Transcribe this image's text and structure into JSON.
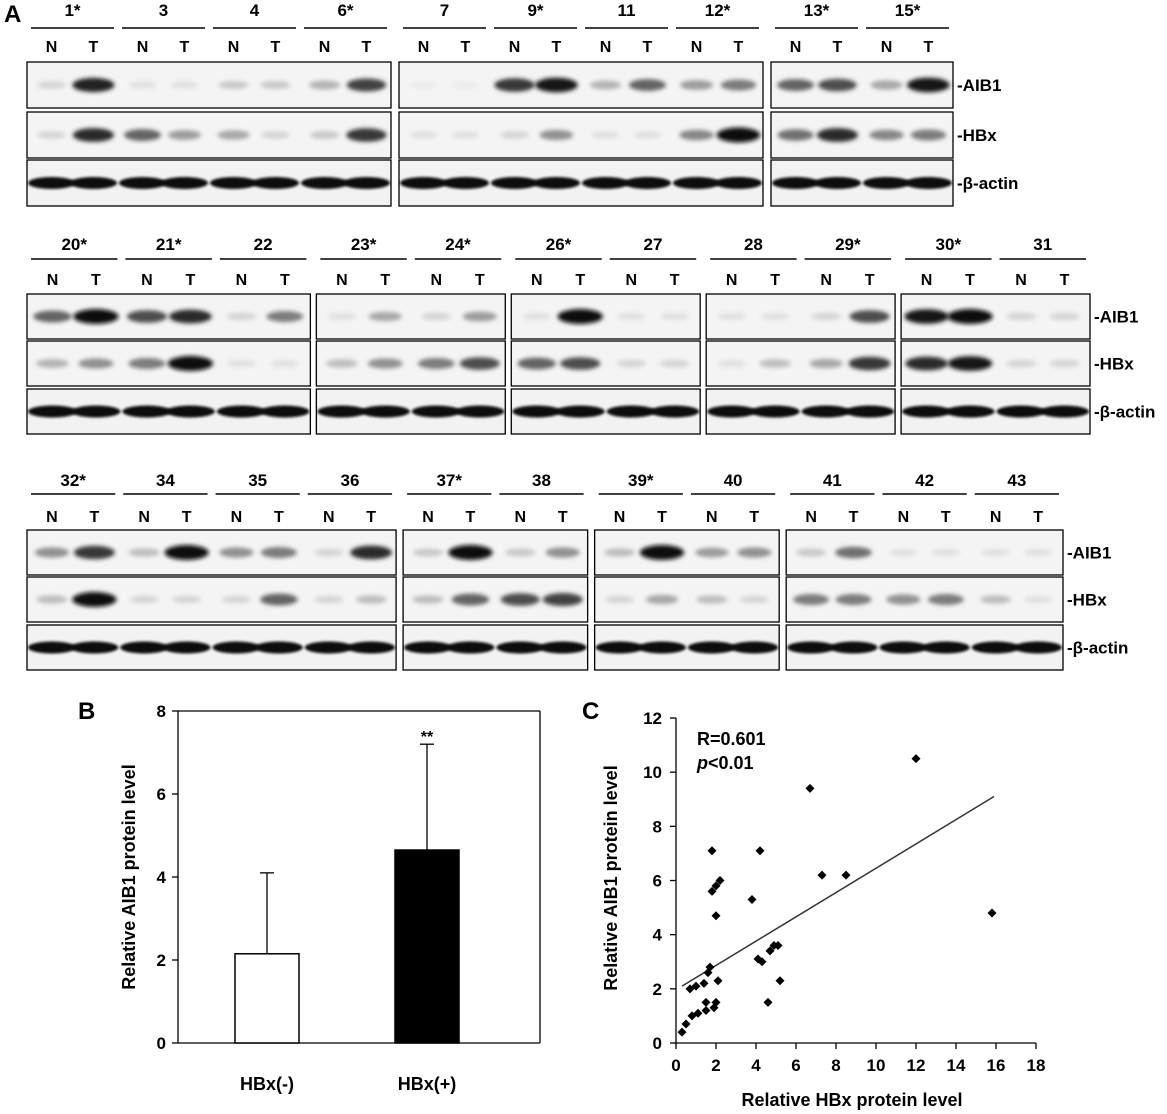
{
  "figure": {
    "panel_labels": {
      "a": "A",
      "b": "B",
      "c": "C"
    },
    "lane_labels": {
      "normal": "N",
      "tumor": "T"
    },
    "proteins": [
      "-AIB1",
      "-HBx",
      "-β-actin"
    ]
  },
  "blots": {
    "rows": [
      {
        "samples": [
          "1*",
          "3",
          "4",
          "6*",
          "7",
          "9*",
          "11",
          "12*",
          "13*",
          "15*"
        ],
        "group_sizes": [
          4,
          4,
          2
        ],
        "bands": {
          "AIB1": [
            0.1,
            0.9,
            0.05,
            0.05,
            0.15,
            0.15,
            0.25,
            0.75,
            0.0,
            0.0,
            0.8,
            0.95,
            0.25,
            0.6,
            0.35,
            0.5,
            0.6,
            0.7,
            0.3,
            0.95
          ],
          "HBx": [
            0.1,
            0.85,
            0.6,
            0.35,
            0.3,
            0.1,
            0.15,
            0.8,
            0.05,
            0.05,
            0.1,
            0.4,
            0.05,
            0.05,
            0.45,
            1.0,
            0.55,
            0.85,
            0.45,
            0.5
          ],
          "actin": [
            1,
            1,
            1,
            1,
            1,
            1,
            1,
            1,
            1,
            1,
            1,
            1,
            1,
            1,
            1,
            1,
            1,
            1,
            1,
            1
          ]
        }
      },
      {
        "samples": [
          "20*",
          "21*",
          "22",
          "23*",
          "24*",
          "26*",
          "27",
          "28",
          "29*",
          "30*",
          "31"
        ],
        "group_sizes": [
          3,
          2,
          2,
          2,
          2
        ],
        "bands": {
          "AIB1": [
            0.6,
            1.0,
            0.7,
            0.85,
            0.1,
            0.5,
            0.05,
            0.3,
            0.1,
            0.35,
            0.05,
            1.0,
            0.05,
            0.05,
            0.05,
            0.05,
            0.1,
            0.7,
            0.95,
            1.0,
            0.1,
            0.1
          ],
          "HBx": [
            0.25,
            0.4,
            0.5,
            1.0,
            0.05,
            0.05,
            0.2,
            0.4,
            0.5,
            0.7,
            0.6,
            0.7,
            0.1,
            0.1,
            0.05,
            0.2,
            0.3,
            0.8,
            0.85,
            0.95,
            0.1,
            0.1
          ],
          "actin": [
            1,
            1,
            1,
            1,
            1,
            1,
            1,
            1,
            1,
            1,
            1,
            1,
            1,
            1,
            1,
            1,
            1,
            1,
            1,
            1,
            1,
            1
          ]
        }
      },
      {
        "samples": [
          "32*",
          "34",
          "35",
          "36",
          "37*",
          "38",
          "39*",
          "40",
          "41",
          "42",
          "43"
        ],
        "group_sizes": [
          4,
          2,
          2,
          3
        ],
        "bands": {
          "AIB1": [
            0.4,
            0.8,
            0.2,
            1.0,
            0.4,
            0.5,
            0.1,
            0.85,
            0.15,
            1.0,
            0.15,
            0.4,
            0.2,
            1.0,
            0.35,
            0.4,
            0.15,
            0.55,
            0.05,
            0.05,
            0.05,
            0.05
          ],
          "HBx": [
            0.2,
            1.0,
            0.1,
            0.1,
            0.1,
            0.6,
            0.1,
            0.2,
            0.2,
            0.6,
            0.7,
            0.75,
            0.1,
            0.3,
            0.2,
            0.1,
            0.5,
            0.5,
            0.4,
            0.5,
            0.2,
            0.05
          ],
          "actin": [
            1,
            1,
            1,
            1,
            1,
            1,
            1,
            1,
            1,
            1,
            1,
            1,
            1,
            1,
            1,
            1,
            1,
            1,
            1,
            1,
            1,
            1
          ]
        }
      }
    ]
  },
  "chart_data": [
    {
      "type": "bar",
      "categories": [
        "HBx(-)",
        "HBx(+)"
      ],
      "values": [
        2.15,
        4.65
      ],
      "errors": [
        1.95,
        2.55
      ],
      "bar_colors": [
        "#ffffff",
        "#000000"
      ],
      "significance": [
        "",
        "**"
      ],
      "ylabel": "Relative AIB1 protein level",
      "ylim": [
        0,
        8
      ],
      "yticks": [
        0,
        2,
        4,
        6,
        8
      ],
      "grid": false
    },
    {
      "type": "scatter",
      "xlabel": "Relative HBx protein level",
      "ylabel": "Relative AIB1 protein level",
      "xlim": [
        0,
        18
      ],
      "ylim": [
        0,
        12
      ],
      "xticks": [
        0,
        2,
        4,
        6,
        8,
        10,
        12,
        14,
        16,
        18
      ],
      "yticks": [
        0,
        2,
        4,
        6,
        8,
        10,
        12
      ],
      "annotation": {
        "r_text": "R=0.601",
        "p_italic": "p",
        "p_rest": "<0.01"
      },
      "points": [
        [
          0.3,
          0.4
        ],
        [
          0.5,
          0.7
        ],
        [
          0.7,
          2.0
        ],
        [
          0.8,
          1.0
        ],
        [
          1.0,
          2.1
        ],
        [
          1.1,
          1.1
        ],
        [
          1.4,
          2.2
        ],
        [
          1.5,
          1.5
        ],
        [
          1.5,
          1.2
        ],
        [
          1.6,
          2.6
        ],
        [
          1.7,
          2.8
        ],
        [
          1.8,
          5.6
        ],
        [
          1.8,
          7.1
        ],
        [
          1.9,
          1.3
        ],
        [
          2.0,
          5.8
        ],
        [
          2.0,
          1.5
        ],
        [
          2.0,
          4.7
        ],
        [
          2.1,
          2.3
        ],
        [
          2.2,
          6.0
        ],
        [
          3.8,
          5.3
        ],
        [
          4.1,
          3.1
        ],
        [
          4.2,
          7.1
        ],
        [
          4.3,
          3.0
        ],
        [
          4.6,
          1.5
        ],
        [
          4.7,
          3.4
        ],
        [
          4.9,
          3.6
        ],
        [
          5.1,
          3.6
        ],
        [
          5.2,
          2.3
        ],
        [
          6.7,
          9.4
        ],
        [
          7.3,
          6.2
        ],
        [
          8.5,
          6.2
        ],
        [
          12.0,
          10.5
        ],
        [
          15.8,
          4.8
        ]
      ],
      "fit_line": {
        "x": [
          0.3,
          15.9
        ],
        "y": [
          2.1,
          9.1
        ]
      },
      "grid": false
    }
  ]
}
